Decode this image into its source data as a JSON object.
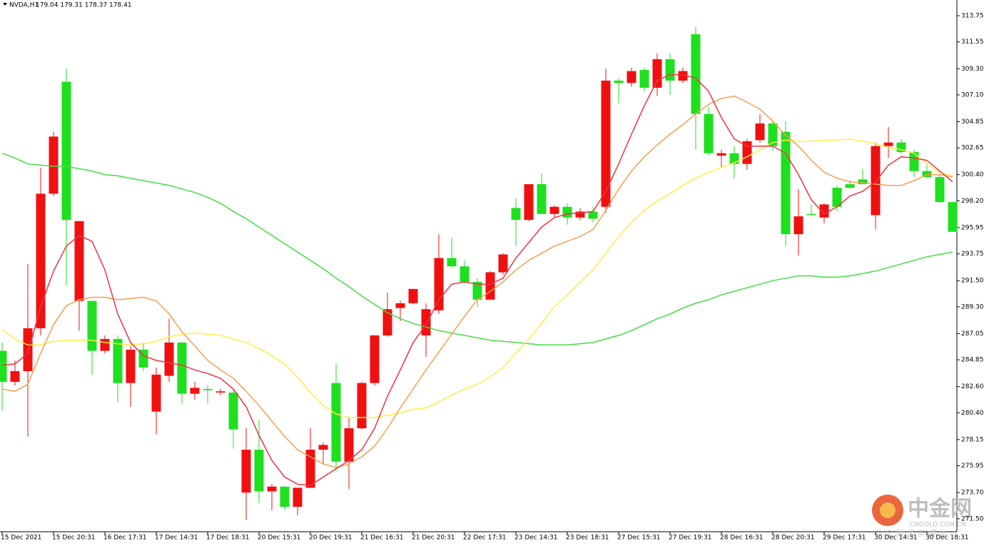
{
  "chart_data": {
    "type": "candlestick",
    "title": "NVDA,H1",
    "header_ohlc": "179.04 179.31 178.37 178.41",
    "up_color": "#1fe01f",
    "down_color": "#f01010",
    "categories": [
      "15 Dec 2021",
      null,
      null,
      null,
      "15 Dec 20:31",
      null,
      null,
      null,
      "16 Dec 17:31",
      null,
      null,
      null,
      "17 Dec 14:31",
      null,
      null,
      null,
      "17 Dec 18:31",
      null,
      null,
      null,
      "20 Dec 15:31",
      null,
      null,
      null,
      "20 Dec 19:31",
      null,
      null,
      null,
      "21 Dec 16:31",
      null,
      null,
      null,
      "21 Dec 20:31",
      null,
      null,
      null,
      "22 Dec 17:31",
      null,
      null,
      null,
      "23 Dec 14:31",
      null,
      null,
      null,
      "23 Dec 18:31",
      null,
      null,
      null,
      "27 Dec 15:31",
      null,
      null,
      null,
      "27 Dec 19:31",
      null,
      null,
      null,
      "28 Dec 16:31",
      null,
      null,
      null,
      "28 Dec 20:31",
      null,
      null,
      null,
      "29 Dec 17:31",
      null,
      null,
      null,
      "30 Dec 14:31",
      null,
      null,
      null,
      "30 Dec 18:31",
      null,
      null
    ],
    "open": [
      283.0,
      283.9,
      287.5,
      298.8,
      303.6,
      296.6,
      296.5,
      285.6,
      286.6,
      282.9,
      285.7,
      284.2,
      283.6,
      286.3,
      282.0,
      282.5,
      282.3,
      282.2,
      279.0,
      277.3,
      273.8,
      274.2,
      272.5,
      274.1,
      277.3,
      277.7,
      276.3,
      279.1,
      282.9,
      286.9,
      289.1,
      289.6,
      290.8,
      289.1,
      293.4,
      292.7,
      291.4,
      289.9,
      292.2,
      293.7,
      296.6,
      299.6,
      297.1,
      297.7,
      296.8,
      297.3,
      296.7,
      308.3,
      308.1,
      309.1,
      307.7,
      310.1,
      308.3,
      309.1,
      305.5,
      302.2,
      302.2,
      301.3,
      303.2,
      304.7,
      302.8,
      295.4,
      296.9,
      297.0,
      297.9,
      297.7,
      299.3,
      299.6,
      302.8,
      303.1,
      302.3,
      300.7,
      300.2,
      298.1,
      295.6
    ],
    "high": [
      286.3,
      284.8,
      292.9,
      301.0,
      304.0,
      309.3,
      296.5,
      289.8,
      286.9,
      286.9,
      286.0,
      286.3,
      284.2,
      288.3,
      286.3,
      283.0,
      282.7,
      282.4,
      282.4,
      279.1,
      279.8,
      274.4,
      274.2,
      274.1,
      279.1,
      277.9,
      284.5,
      280.0,
      283.0,
      286.9,
      290.5,
      289.8,
      290.8,
      289.6,
      295.4,
      295.1,
      293.2,
      291.7,
      292.3,
      293.8,
      298.4,
      299.6,
      300.5,
      297.8,
      298.0,
      297.6,
      297.7,
      309.3,
      308.5,
      309.4,
      309.4,
      310.6,
      310.6,
      309.4,
      312.8,
      306.1,
      302.5,
      302.8,
      303.4,
      305.5,
      304.9,
      304.9,
      299.2,
      297.9,
      298.0,
      299.5,
      299.9,
      300.9,
      303.1,
      304.4,
      303.4,
      302.5,
      301.2,
      300.5,
      298.1
    ],
    "low": [
      280.6,
      282.7,
      278.4,
      286.9,
      298.6,
      291.1,
      287.3,
      283.6,
      285.4,
      281.3,
      280.9,
      283.9,
      278.6,
      283.0,
      281.2,
      281.5,
      281.2,
      281.9,
      277.4,
      271.4,
      272.8,
      272.2,
      272.2,
      271.8,
      274.1,
      276.1,
      275.5,
      274.0,
      279.0,
      282.7,
      286.8,
      288.1,
      289.5,
      285.1,
      288.7,
      292.6,
      291.2,
      289.3,
      289.9,
      292.0,
      294.4,
      296.5,
      297.1,
      296.8,
      296.2,
      296.6,
      296.4,
      297.2,
      306.4,
      307.8,
      307.4,
      307.0,
      307.1,
      308.1,
      302.5,
      302.0,
      301.0,
      300.1,
      300.8,
      303.1,
      302.4,
      294.4,
      293.6,
      297.0,
      296.3,
      297.3,
      299.2,
      299.6,
      295.8,
      301.8,
      302.2,
      300.2,
      300.1,
      298.0,
      295.6
    ],
    "close": [
      285.6,
      283.0,
      283.9,
      287.5,
      298.8,
      308.2,
      289.8,
      289.8,
      285.6,
      286.6,
      282.9,
      285.7,
      280.5,
      283.5,
      286.3,
      282.0,
      282.4,
      282.1,
      282.1,
      273.7,
      277.3,
      273.8,
      274.2,
      272.5,
      274.1,
      277.3,
      282.9,
      276.3,
      279.1,
      282.9,
      286.9,
      289.2,
      289.6,
      286.9,
      289.0,
      293.4,
      292.7,
      291.4,
      289.9,
      292.2,
      297.6,
      296.6,
      299.6,
      297.1,
      297.7,
      296.8,
      297.3,
      297.7,
      308.3,
      308.1,
      309.2,
      307.7,
      310.1,
      308.3,
      312.2,
      305.5,
      302.0,
      302.2,
      301.3,
      303.3,
      304.7,
      304.0,
      295.4,
      297.1,
      296.8,
      299.3,
      299.6,
      300.0,
      297.0,
      302.8,
      303.1,
      302.3,
      300.7,
      300.2,
      298.1
    ],
    "indicators": [
      {
        "color": "#44dd44",
        "values": [
          302.2,
          301.8,
          301.3,
          301.2,
          301.1,
          301.1,
          300.9,
          300.7,
          300.4,
          300.3,
          300.1,
          299.9,
          299.7,
          299.5,
          299.2,
          298.9,
          298.5,
          298.0,
          297.3,
          296.7,
          296.0,
          295.3,
          294.6,
          293.9,
          293.2,
          292.5,
          291.7,
          291.0,
          290.2,
          289.5,
          288.8,
          288.3,
          287.9,
          287.6,
          287.3,
          287.1,
          286.9,
          286.7,
          286.5,
          286.4,
          286.3,
          286.2,
          286.1,
          286.1,
          286.1,
          286.2,
          286.3,
          286.6,
          286.9,
          287.3,
          287.8,
          288.3,
          288.7,
          289.2,
          289.6,
          289.9,
          290.3,
          290.6,
          290.9,
          291.2,
          291.5,
          291.7,
          291.9,
          291.9,
          291.8,
          291.8,
          291.9,
          292.1,
          292.3,
          292.6,
          292.9,
          293.2,
          293.5,
          293.7,
          293.9
        ]
      },
      {
        "color": "#ffee44",
        "values": [
          287.4,
          286.6,
          286.1,
          286.1,
          286.4,
          286.5,
          286.5,
          286.5,
          286.3,
          286.2,
          286.1,
          286.2,
          286.4,
          286.8,
          287.0,
          287.1,
          287.0,
          286.9,
          286.6,
          286.3,
          285.8,
          285.2,
          284.5,
          283.4,
          282.1,
          281.0,
          280.3,
          280.0,
          280.0,
          280.0,
          280.2,
          280.4,
          280.7,
          280.8,
          281.3,
          281.9,
          282.4,
          282.8,
          283.4,
          284.2,
          285.4,
          286.6,
          287.9,
          289.3,
          290.3,
          291.4,
          292.4,
          293.8,
          295.2,
          296.4,
          297.4,
          298.2,
          298.8,
          299.5,
          300.1,
          300.6,
          301.0,
          301.4,
          301.9,
          302.5,
          303.1,
          303.3,
          303.2,
          303.2,
          303.3,
          303.3,
          303.4,
          303.2,
          303.0,
          302.7,
          302.5,
          302.2,
          301.3,
          300.6,
          300.3
        ]
      },
      {
        "color": "#f5a050",
        "values": [
          282.4,
          282.2,
          282.8,
          285.4,
          287.8,
          289.4,
          289.9,
          290.1,
          290.1,
          289.9,
          290.0,
          290.1,
          289.8,
          288.7,
          287.2,
          286.0,
          284.8,
          284.0,
          283.3,
          282.2,
          281.0,
          279.7,
          278.4,
          277.3,
          276.7,
          276.1,
          275.8,
          276.1,
          276.7,
          277.6,
          279.1,
          280.8,
          282.4,
          284.0,
          285.5,
          287.0,
          288.5,
          289.9,
          290.6,
          291.4,
          292.4,
          293.2,
          293.8,
          294.4,
          294.8,
          295.2,
          295.8,
          297.4,
          299.2,
          300.7,
          301.9,
          302.9,
          303.8,
          304.6,
          305.5,
          306.3,
          306.8,
          307.0,
          306.5,
          305.9,
          304.9,
          303.7,
          302.8,
          301.6,
          300.6,
          300.1,
          299.8,
          299.7,
          299.6,
          299.5,
          299.5,
          299.9,
          300.4,
          300.4,
          300.2
        ]
      },
      {
        "color": "#ee3344",
        "values": [
          284.4,
          284.5,
          285.4,
          289.3,
          292.3,
          294.4,
          295.3,
          294.8,
          292.4,
          288.7,
          286.3,
          285.2,
          284.8,
          284.6,
          284.4,
          284.0,
          283.7,
          283.3,
          282.4,
          280.9,
          278.5,
          276.4,
          275.0,
          274.4,
          274.3,
          275.0,
          275.7,
          276.4,
          277.3,
          279.1,
          281.8,
          284.0,
          286.3,
          287.8,
          289.9,
          291.2,
          291.4,
          291.2,
          291.2,
          291.7,
          293.4,
          294.7,
          296.0,
          296.8,
          297.1,
          297.2,
          297.3,
          299.0,
          301.3,
          303.8,
          306.2,
          308.3,
          308.8,
          308.8,
          308.5,
          307.4,
          305.2,
          303.4,
          302.8,
          302.8,
          302.8,
          302.2,
          300.4,
          298.3,
          297.1,
          297.7,
          298.6,
          299.0,
          299.8,
          301.2,
          301.9,
          301.8,
          301.6,
          300.7,
          299.8
        ]
      }
    ],
    "ylim": [
      270.41,
      315.07
    ],
    "yticks": [
      313.75,
      311.55,
      {
        "value": 309.3,
        "label": "309.30"
      },
      {
        "value": 307.1,
        "label": "307.10"
      },
      304.85,
      302.65,
      {
        "value": 300.4,
        "label": "300.40"
      },
      {
        "value": 298.2,
        "label": "298.20"
      },
      295.95,
      293.75,
      {
        "value": 291.5,
        "label": "291.50"
      },
      {
        "value": 289.3,
        "label": "289.30"
      },
      287.05,
      284.85,
      {
        "value": 282.6,
        "label": "282.60"
      },
      {
        "value": 280.4,
        "label": "280.40"
      },
      278.15,
      275.95,
      {
        "value": 273.7,
        "label": "273.70"
      },
      {
        "value": 271.5,
        "label": "271.50"
      }
    ],
    "watermark": {
      "name": "中金网",
      "site": "CNGOLD.COM.CN",
      "slogan": "中文财经新媒体"
    }
  }
}
